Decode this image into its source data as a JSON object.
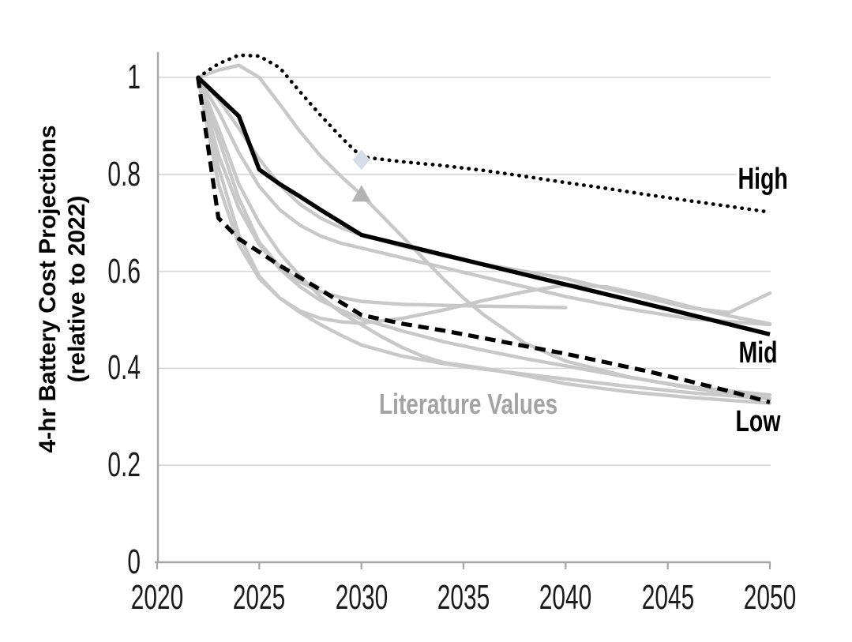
{
  "figure": {
    "y_axis": {
      "title_line1": "4-hr Battery Cost Projections",
      "title_line2": "(relative to 2022)",
      "ticks": [
        "1",
        "0.8",
        "0.6",
        "0.4",
        "0.2",
        "0"
      ],
      "tick_values": [
        1,
        0.8,
        0.6,
        0.4,
        0.2,
        0
      ],
      "grid_values": [
        1,
        0.8,
        0.6,
        0.4,
        0.2
      ]
    },
    "x_axis": {
      "ticks": [
        "2020",
        "2025",
        "2030",
        "2035",
        "2040",
        "2045",
        "2050"
      ],
      "tick_values": [
        2020,
        2025,
        2030,
        2035,
        2040,
        2045,
        2050
      ]
    },
    "labels": {
      "high": "High",
      "mid": "Mid",
      "low": "Low",
      "literature": "Literature Values"
    },
    "colors": {
      "black_series": "#000000",
      "literature_line": "#c8c8c8",
      "literature_label": "#a3a3a3",
      "gridline": "#d9d9d9",
      "axis": "#a6a6a6",
      "tick_text": "#1a1a1a",
      "diamond_marker": "#d9dde9",
      "triangle_marker": "#b3b3b3",
      "background": "#ffffff"
    }
  },
  "chart_data": {
    "type": "line",
    "title": "",
    "xlabel": "",
    "ylabel": "4-hr Battery Cost Projections (relative to 2022)",
    "xlim": [
      2020,
      2050
    ],
    "ylim": [
      0,
      1.05
    ],
    "grid": "horizontal",
    "legend": "inline-labels",
    "series": [
      {
        "name": "High",
        "group": "main",
        "style": "dotted",
        "color": "#000000",
        "points": [
          [
            2022,
            1.0
          ],
          [
            2023,
            1.028
          ],
          [
            2024,
            1.046
          ],
          [
            2025,
            1.044
          ],
          [
            2026,
            1.02
          ],
          [
            2027,
            0.97
          ],
          [
            2028,
            0.922
          ],
          [
            2029,
            0.877
          ],
          [
            2030,
            0.836
          ],
          [
            2032,
            0.826
          ],
          [
            2034,
            0.818
          ],
          [
            2036,
            0.808
          ],
          [
            2038,
            0.796
          ],
          [
            2040,
            0.783
          ],
          [
            2042,
            0.771
          ],
          [
            2044,
            0.758
          ],
          [
            2046,
            0.746
          ],
          [
            2048,
            0.734
          ],
          [
            2050,
            0.722
          ]
        ]
      },
      {
        "name": "Mid",
        "group": "main",
        "style": "solid",
        "color": "#000000",
        "points": [
          [
            2022,
            1.0
          ],
          [
            2023,
            0.96
          ],
          [
            2024,
            0.92
          ],
          [
            2025,
            0.81
          ],
          [
            2026,
            0.78
          ],
          [
            2027,
            0.754
          ],
          [
            2028,
            0.727
          ],
          [
            2029,
            0.701
          ],
          [
            2030,
            0.675
          ],
          [
            2035,
            0.624
          ],
          [
            2040,
            0.573
          ],
          [
            2045,
            0.522
          ],
          [
            2050,
            0.47
          ]
        ]
      },
      {
        "name": "Low",
        "group": "main",
        "style": "dashed",
        "color": "#000000",
        "points": [
          [
            2022,
            1.0
          ],
          [
            2023,
            0.71
          ],
          [
            2024,
            0.667
          ],
          [
            2025,
            0.64
          ],
          [
            2026,
            0.612
          ],
          [
            2027,
            0.587
          ],
          [
            2028,
            0.562
          ],
          [
            2029,
            0.536
          ],
          [
            2030,
            0.51
          ],
          [
            2032,
            0.492
          ],
          [
            2034,
            0.478
          ],
          [
            2036,
            0.462
          ],
          [
            2038,
            0.446
          ],
          [
            2040,
            0.43
          ],
          [
            2042,
            0.412
          ],
          [
            2044,
            0.394
          ],
          [
            2046,
            0.374
          ],
          [
            2048,
            0.353
          ],
          [
            2050,
            0.33
          ]
        ]
      },
      {
        "name": "Literature 1",
        "group": "literature",
        "style": "solid",
        "color": "#c8c8c8",
        "points": [
          [
            2022,
            1.0
          ],
          [
            2023,
            1.015
          ],
          [
            2024,
            1.025
          ],
          [
            2025,
            1.0
          ],
          [
            2026,
            0.945
          ],
          [
            2027,
            0.888
          ],
          [
            2028,
            0.838
          ],
          [
            2029,
            0.796
          ],
          [
            2030,
            0.758
          ],
          [
            2031,
            0.715
          ],
          [
            2032,
            0.672
          ],
          [
            2033,
            0.628
          ],
          [
            2034,
            0.585
          ],
          [
            2035,
            0.545
          ],
          [
            2036,
            0.51
          ],
          [
            2038,
            0.452
          ],
          [
            2040,
            0.415
          ],
          [
            2043,
            0.383
          ],
          [
            2046,
            0.36
          ],
          [
            2050,
            0.338
          ]
        ]
      },
      {
        "name": "Literature 2",
        "group": "literature",
        "style": "solid",
        "color": "#c8c8c8",
        "points": [
          [
            2022,
            1.0
          ],
          [
            2023,
            0.895
          ],
          [
            2024,
            0.78
          ],
          [
            2025,
            0.7
          ],
          [
            2026,
            0.638
          ],
          [
            2027,
            0.59
          ],
          [
            2028,
            0.548
          ],
          [
            2029,
            0.515
          ],
          [
            2030,
            0.49
          ],
          [
            2031,
            0.465
          ],
          [
            2032,
            0.443
          ],
          [
            2033,
            0.425
          ],
          [
            2034,
            0.412
          ],
          [
            2036,
            0.4
          ],
          [
            2038,
            0.385
          ],
          [
            2040,
            0.368
          ],
          [
            2043,
            0.352
          ],
          [
            2046,
            0.34
          ],
          [
            2050,
            0.328
          ]
        ]
      },
      {
        "name": "Literature 3",
        "group": "literature",
        "style": "solid",
        "color": "#c8c8c8",
        "points": [
          [
            2022,
            1.0
          ],
          [
            2023,
            0.84
          ],
          [
            2024,
            0.73
          ],
          [
            2025,
            0.655
          ],
          [
            2026,
            0.605
          ],
          [
            2027,
            0.568
          ],
          [
            2028,
            0.54
          ],
          [
            2029,
            0.52
          ],
          [
            2030,
            0.502
          ],
          [
            2032,
            0.477
          ],
          [
            2034,
            0.455
          ],
          [
            2036,
            0.437
          ],
          [
            2038,
            0.42
          ],
          [
            2040,
            0.405
          ],
          [
            2043,
            0.382
          ],
          [
            2046,
            0.362
          ],
          [
            2050,
            0.345
          ]
        ]
      },
      {
        "name": "Literature 4",
        "group": "literature",
        "style": "solid",
        "color": "#c8c8c8",
        "points": [
          [
            2022,
            1.0
          ],
          [
            2023,
            0.875
          ],
          [
            2024,
            0.75
          ],
          [
            2025,
            0.66
          ],
          [
            2026,
            0.61
          ],
          [
            2027,
            0.578
          ],
          [
            2028,
            0.558
          ],
          [
            2029,
            0.546
          ],
          [
            2030,
            0.538
          ],
          [
            2032,
            0.532
          ],
          [
            2034,
            0.53
          ],
          [
            2036,
            0.528
          ],
          [
            2038,
            0.527
          ],
          [
            2040,
            0.525
          ]
        ]
      },
      {
        "name": "Literature 5",
        "group": "literature",
        "style": "solid",
        "color": "#c8c8c8",
        "points": [
          [
            2022,
            1.0
          ],
          [
            2023,
            0.93
          ],
          [
            2024,
            0.845
          ],
          [
            2025,
            0.775
          ],
          [
            2026,
            0.727
          ],
          [
            2027,
            0.695
          ],
          [
            2028,
            0.673
          ],
          [
            2029,
            0.658
          ],
          [
            2030,
            0.648
          ],
          [
            2032,
            0.628
          ],
          [
            2034,
            0.608
          ],
          [
            2036,
            0.588
          ],
          [
            2038,
            0.568
          ],
          [
            2040,
            0.548
          ],
          [
            2043,
            0.523
          ],
          [
            2046,
            0.503
          ],
          [
            2050,
            0.49
          ]
        ]
      },
      {
        "name": "Literature 6",
        "group": "literature",
        "style": "solid",
        "color": "#c8c8c8",
        "points": [
          [
            2022,
            1.0
          ],
          [
            2023,
            0.955
          ],
          [
            2024,
            0.895
          ],
          [
            2025,
            0.832
          ],
          [
            2026,
            0.778
          ],
          [
            2027,
            0.738
          ],
          [
            2028,
            0.71
          ],
          [
            2029,
            0.69
          ],
          [
            2030,
            0.675
          ],
          [
            2032,
            0.652
          ],
          [
            2034,
            0.632
          ],
          [
            2036,
            0.615
          ],
          [
            2038,
            0.6
          ],
          [
            2040,
            0.585
          ],
          [
            2042,
            0.565
          ],
          [
            2044,
            0.545
          ],
          [
            2046,
            0.525
          ],
          [
            2048,
            0.515
          ],
          [
            2050,
            0.555
          ]
        ]
      },
      {
        "name": "Literature 7",
        "group": "literature",
        "style": "solid",
        "color": "#c8c8c8",
        "points": [
          [
            2022,
            1.0
          ],
          [
            2023,
            0.815
          ],
          [
            2024,
            0.675
          ],
          [
            2025,
            0.59
          ],
          [
            2026,
            0.545
          ],
          [
            2027,
            0.518
          ],
          [
            2028,
            0.503
          ],
          [
            2029,
            0.496
          ],
          [
            2030,
            0.493
          ],
          [
            2032,
            0.503
          ],
          [
            2034,
            0.52
          ],
          [
            2036,
            0.54
          ],
          [
            2038,
            0.558
          ],
          [
            2040,
            0.572
          ],
          [
            2042,
            0.568
          ],
          [
            2044,
            0.55
          ],
          [
            2046,
            0.528
          ],
          [
            2048,
            0.508
          ],
          [
            2050,
            0.492
          ]
        ]
      },
      {
        "name": "Literature 8",
        "group": "literature",
        "style": "solid",
        "color": "#c8c8c8",
        "points": [
          [
            2022,
            1.0
          ],
          [
            2023,
            0.78
          ],
          [
            2024,
            0.655
          ],
          [
            2025,
            0.585
          ],
          [
            2026,
            0.545
          ],
          [
            2027,
            0.515
          ],
          [
            2028,
            0.49
          ],
          [
            2029,
            0.468
          ],
          [
            2030,
            0.448
          ],
          [
            2032,
            0.425
          ],
          [
            2034,
            0.41
          ],
          [
            2036,
            0.398
          ],
          [
            2038,
            0.388
          ],
          [
            2040,
            0.378
          ],
          [
            2043,
            0.363
          ],
          [
            2046,
            0.35
          ],
          [
            2050,
            0.337
          ]
        ]
      }
    ],
    "markers": [
      {
        "name": "literature-point-diamond",
        "shape": "diamond",
        "year": 2030,
        "value": 0.83,
        "color": "#d9dde9"
      },
      {
        "name": "literature-point-triangle",
        "shape": "triangle-up",
        "year": 2030,
        "value": 0.76,
        "color": "#b3b3b3"
      }
    ],
    "annotations": [
      {
        "text": "High",
        "year": 2049.5,
        "value": 0.77
      },
      {
        "text": "Mid",
        "year": 2049.5,
        "value": 0.43
      },
      {
        "text": "Low",
        "year": 2049.3,
        "value": 0.29
      },
      {
        "text": "Literature Values",
        "year": 2035,
        "value": 0.33
      }
    ]
  }
}
